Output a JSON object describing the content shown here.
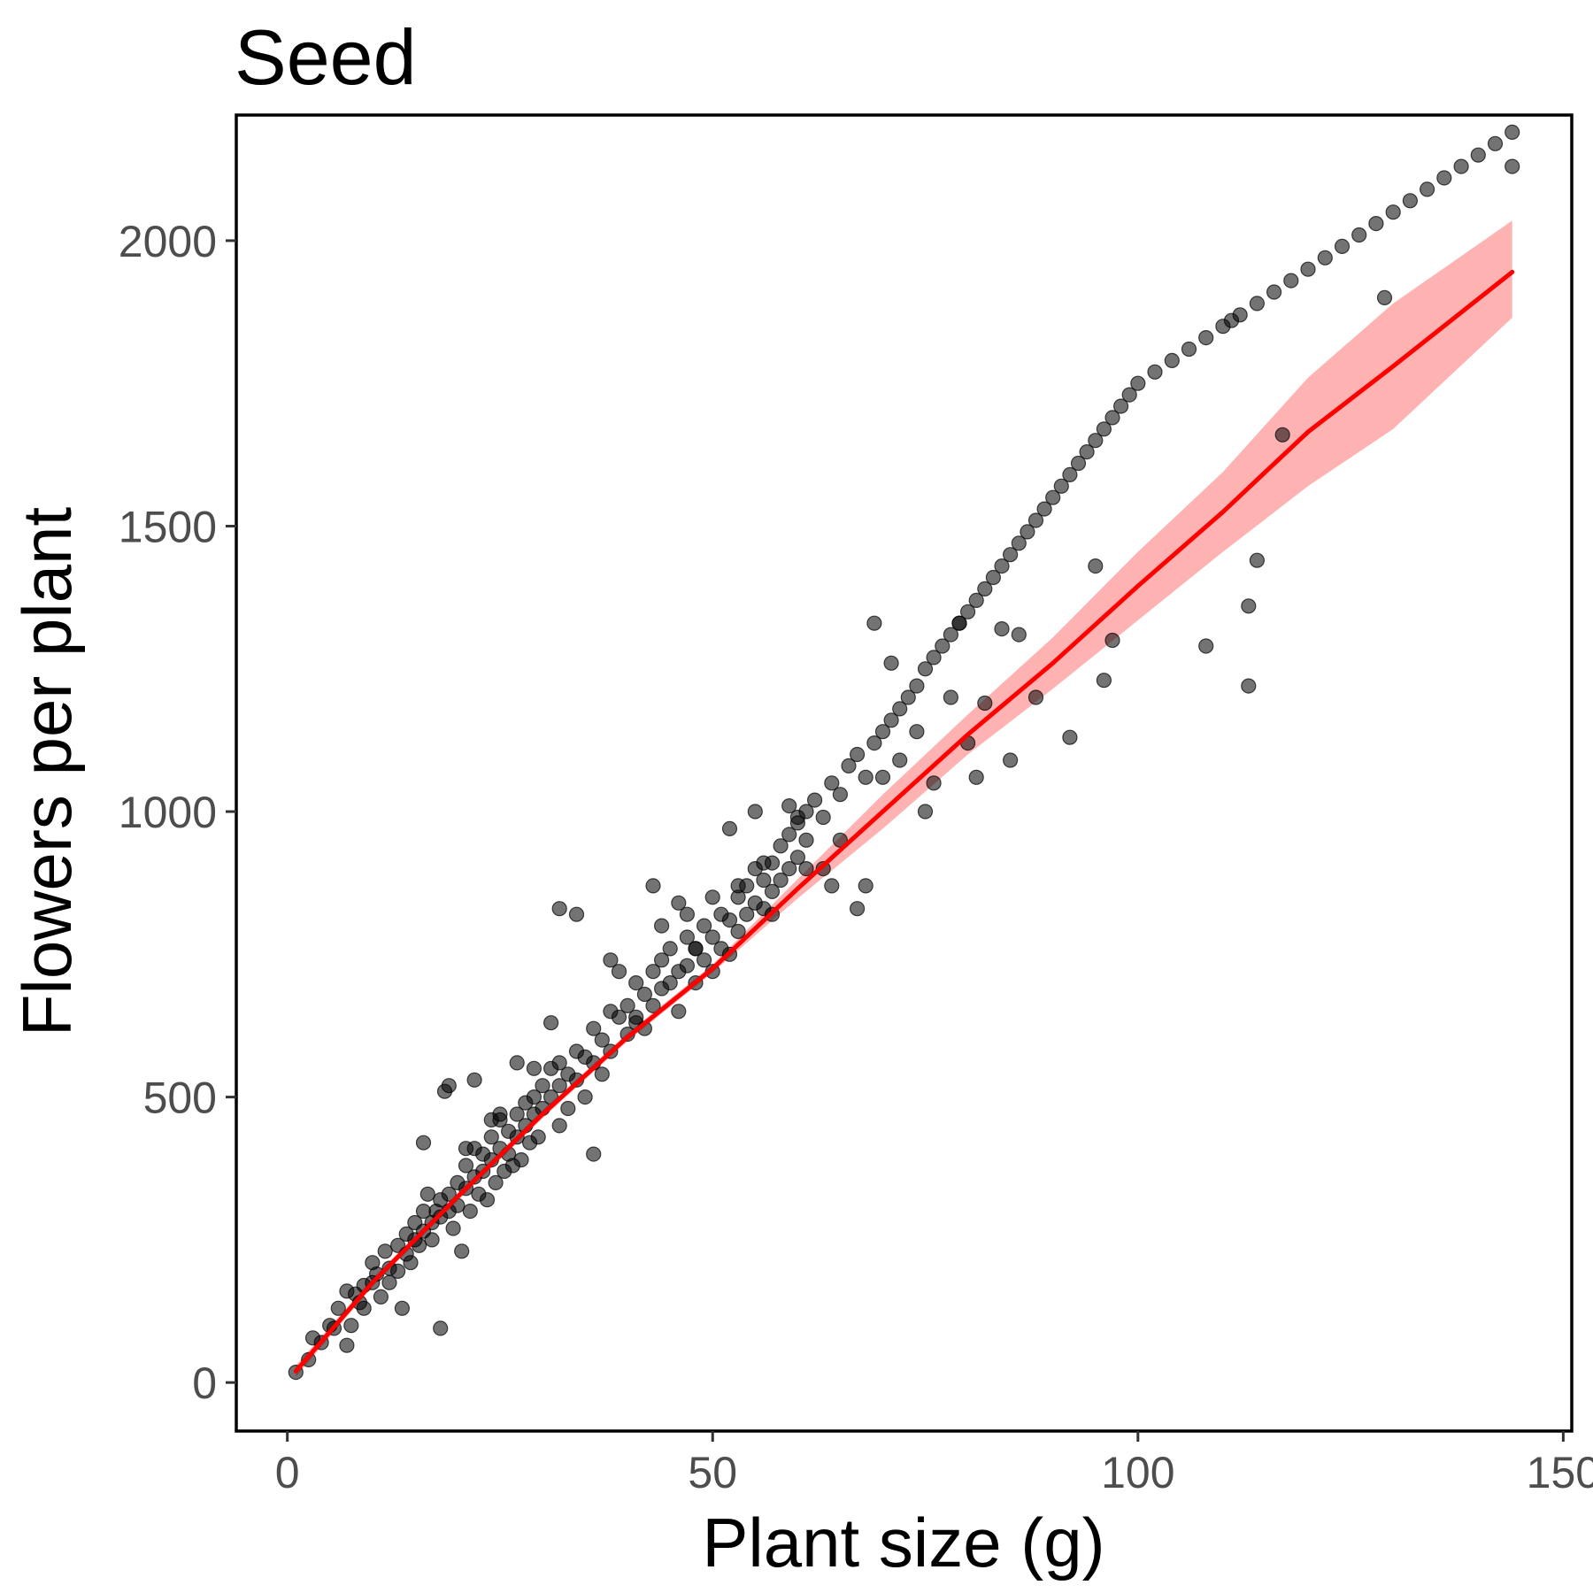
{
  "chart_data": {
    "type": "scatter",
    "title": "Seed",
    "xlabel": "Plant size (g)",
    "ylabel": "Flowers per plant",
    "xlim": [
      -6,
      151
    ],
    "ylim": [
      -85,
      2220
    ],
    "x_ticks": [
      0,
      50,
      100,
      150
    ],
    "y_ticks": [
      0,
      500,
      1000,
      1500,
      2000
    ],
    "x_tick_labels": [
      "0",
      "50",
      "100",
      "150"
    ],
    "y_tick_labels": [
      "0",
      "500",
      "1000",
      "1500",
      "2000"
    ],
    "grid": false,
    "legend": "none",
    "point_color": "#000000",
    "fit_color": "#ff0000",
    "band_color": "#ff0000",
    "fit": {
      "x": [
        1,
        10,
        20,
        30,
        40,
        50,
        60,
        70,
        80,
        90,
        100,
        110,
        120,
        130,
        144
      ],
      "y": [
        20,
        175,
        325,
        470,
        605,
        725,
        865,
        1000,
        1135,
        1260,
        1395,
        1525,
        1665,
        1780,
        1945
      ],
      "lower": [
        10,
        168,
        318,
        463,
        598,
        718,
        848,
        970,
        1100,
        1215,
        1335,
        1455,
        1570,
        1670,
        1865
      ],
      "upper": [
        30,
        182,
        332,
        477,
        612,
        732,
        882,
        1030,
        1170,
        1305,
        1455,
        1595,
        1760,
        1890,
        2035
      ]
    },
    "points": [
      [
        1,
        18
      ],
      [
        2.5,
        40
      ],
      [
        3,
        78
      ],
      [
        4,
        70
      ],
      [
        5,
        100
      ],
      [
        5.5,
        95
      ],
      [
        6,
        130
      ],
      [
        7,
        65
      ],
      [
        7,
        160
      ],
      [
        7.5,
        100
      ],
      [
        8,
        155
      ],
      [
        8.5,
        140
      ],
      [
        9,
        170
      ],
      [
        9,
        130
      ],
      [
        10,
        175
      ],
      [
        10.5,
        190
      ],
      [
        10,
        210
      ],
      [
        11,
        150
      ],
      [
        11.5,
        230
      ],
      [
        12,
        200
      ],
      [
        12,
        175
      ],
      [
        13,
        240
      ],
      [
        13,
        195
      ],
      [
        13.5,
        130
      ],
      [
        14,
        260
      ],
      [
        14,
        225
      ],
      [
        14.5,
        210
      ],
      [
        15,
        280
      ],
      [
        15,
        250
      ],
      [
        15.5,
        240
      ],
      [
        16,
        300
      ],
      [
        16,
        265
      ],
      [
        16.5,
        330
      ],
      [
        16,
        420
      ],
      [
        17,
        280
      ],
      [
        17,
        250
      ],
      [
        17.5,
        300
      ],
      [
        18,
        320
      ],
      [
        18,
        290
      ],
      [
        18.5,
        510
      ],
      [
        19,
        330
      ],
      [
        19,
        300
      ],
      [
        19.5,
        270
      ],
      [
        20,
        350
      ],
      [
        20,
        310
      ],
      [
        20.5,
        230
      ],
      [
        21,
        380
      ],
      [
        21,
        340
      ],
      [
        21.5,
        300
      ],
      [
        22,
        410
      ],
      [
        22,
        360
      ],
      [
        22.5,
        330
      ],
      [
        23,
        400
      ],
      [
        23,
        370
      ],
      [
        23.5,
        320
      ],
      [
        24,
        430
      ],
      [
        24,
        390
      ],
      [
        24.5,
        350
      ],
      [
        25,
        460
      ],
      [
        25,
        410
      ],
      [
        25.5,
        370
      ],
      [
        26,
        440
      ],
      [
        26,
        400
      ],
      [
        26.5,
        380
      ],
      [
        27,
        470
      ],
      [
        27,
        430
      ],
      [
        27.5,
        390
      ],
      [
        28,
        490
      ],
      [
        28,
        450
      ],
      [
        28.5,
        420
      ],
      [
        29,
        500
      ],
      [
        29,
        470
      ],
      [
        29.5,
        430
      ],
      [
        30,
        520
      ],
      [
        30,
        480
      ],
      [
        31,
        550
      ],
      [
        31,
        500
      ],
      [
        32,
        560
      ],
      [
        32,
        520
      ],
      [
        32,
        450
      ],
      [
        33,
        540
      ],
      [
        33,
        480
      ],
      [
        34,
        580
      ],
      [
        34,
        530
      ],
      [
        35,
        570
      ],
      [
        35,
        500
      ],
      [
        36,
        620
      ],
      [
        36,
        560
      ],
      [
        37,
        600
      ],
      [
        37,
        540
      ],
      [
        38,
        650
      ],
      [
        38,
        580
      ],
      [
        39,
        640
      ],
      [
        40,
        660
      ],
      [
        40,
        610
      ],
      [
        41,
        700
      ],
      [
        41,
        630
      ],
      [
        42,
        680
      ],
      [
        42,
        620
      ],
      [
        43,
        720
      ],
      [
        43,
        660
      ],
      [
        44,
        740
      ],
      [
        44,
        690
      ],
      [
        45,
        760
      ],
      [
        45,
        700
      ],
      [
        46,
        720
      ],
      [
        46,
        650
      ],
      [
        47,
        780
      ],
      [
        47,
        730
      ],
      [
        48,
        760
      ],
      [
        48,
        700
      ],
      [
        49,
        800
      ],
      [
        49,
        740
      ],
      [
        50,
        780
      ],
      [
        50,
        720
      ],
      [
        51,
        820
      ],
      [
        51,
        760
      ],
      [
        52,
        810
      ],
      [
        52,
        750
      ],
      [
        53,
        850
      ],
      [
        53,
        790
      ],
      [
        54,
        870
      ],
      [
        54,
        820
      ],
      [
        55,
        900
      ],
      [
        55,
        840
      ],
      [
        56,
        880
      ],
      [
        56,
        830
      ],
      [
        57,
        910
      ],
      [
        57,
        860
      ],
      [
        58,
        940
      ],
      [
        58,
        880
      ],
      [
        59,
        960
      ],
      [
        59,
        900
      ],
      [
        60,
        980
      ],
      [
        60,
        920
      ],
      [
        61,
        1000
      ],
      [
        61,
        950
      ],
      [
        62,
        1020
      ],
      [
        63,
        990
      ],
      [
        64,
        1050
      ],
      [
        65,
        1030
      ],
      [
        66,
        1080
      ],
      [
        67,
        1100
      ],
      [
        68,
        1060
      ],
      [
        69,
        1120
      ],
      [
        70,
        1140
      ],
      [
        71,
        1160
      ],
      [
        72,
        1180
      ],
      [
        73,
        1200
      ],
      [
        74,
        1220
      ],
      [
        75,
        1250
      ],
      [
        76,
        1270
      ],
      [
        77,
        1290
      ],
      [
        78,
        1310
      ],
      [
        79,
        1330
      ],
      [
        80,
        1350
      ],
      [
        81,
        1370
      ],
      [
        82,
        1390
      ],
      [
        83,
        1410
      ],
      [
        84,
        1430
      ],
      [
        85,
        1450
      ],
      [
        86,
        1470
      ],
      [
        87,
        1490
      ],
      [
        88,
        1510
      ],
      [
        89,
        1530
      ],
      [
        90,
        1550
      ],
      [
        91,
        1570
      ],
      [
        92,
        1590
      ],
      [
        93,
        1610
      ],
      [
        94,
        1630
      ],
      [
        95,
        1650
      ],
      [
        96,
        1670
      ],
      [
        97,
        1690
      ],
      [
        98,
        1710
      ],
      [
        99,
        1730
      ],
      [
        100,
        1750
      ],
      [
        102,
        1770
      ],
      [
        104,
        1790
      ],
      [
        106,
        1810
      ],
      [
        108,
        1830
      ],
      [
        110,
        1850
      ],
      [
        112,
        1870
      ],
      [
        114,
        1890
      ],
      [
        116,
        1910
      ],
      [
        118,
        1930
      ],
      [
        120,
        1950
      ],
      [
        122,
        1970
      ],
      [
        124,
        1990
      ],
      [
        126,
        2010
      ],
      [
        128,
        2030
      ],
      [
        130,
        2050
      ],
      [
        132,
        2070
      ],
      [
        134,
        2090
      ],
      [
        136,
        2110
      ],
      [
        138,
        2130
      ],
      [
        140,
        2150
      ],
      [
        142,
        2170
      ],
      [
        144,
        2190
      ],
      [
        18,
        95
      ],
      [
        19,
        520
      ],
      [
        21,
        410
      ],
      [
        22,
        530
      ],
      [
        24,
        460
      ],
      [
        25,
        470
      ],
      [
        27,
        560
      ],
      [
        29,
        550
      ],
      [
        31,
        630
      ],
      [
        32,
        830
      ],
      [
        34,
        820
      ],
      [
        36,
        400
      ],
      [
        38,
        740
      ],
      [
        39,
        720
      ],
      [
        41,
        640
      ],
      [
        43,
        870
      ],
      [
        44,
        800
      ],
      [
        46,
        840
      ],
      [
        47,
        820
      ],
      [
        48,
        760
      ],
      [
        50,
        850
      ],
      [
        52,
        970
      ],
      [
        53,
        870
      ],
      [
        55,
        1000
      ],
      [
        56,
        910
      ],
      [
        57,
        820
      ],
      [
        59,
        1010
      ],
      [
        60,
        990
      ],
      [
        61,
        900
      ],
      [
        63,
        900
      ],
      [
        64,
        870
      ],
      [
        65,
        950
      ],
      [
        67,
        830
      ],
      [
        68,
        870
      ],
      [
        69,
        1330
      ],
      [
        70,
        1060
      ],
      [
        71,
        1260
      ],
      [
        72,
        1090
      ],
      [
        74,
        1140
      ],
      [
        75,
        1000
      ],
      [
        76,
        1050
      ],
      [
        78,
        1200
      ],
      [
        79,
        1330
      ],
      [
        80,
        1120
      ],
      [
        81,
        1060
      ],
      [
        82,
        1190
      ],
      [
        84,
        1320
      ],
      [
        85,
        1090
      ],
      [
        86,
        1310
      ],
      [
        88,
        1200
      ],
      [
        92,
        1130
      ],
      [
        95,
        1430
      ],
      [
        96,
        1230
      ],
      [
        97,
        1300
      ],
      [
        108,
        1290
      ],
      [
        111,
        1860
      ],
      [
        113,
        1220
      ],
      [
        113,
        1360
      ],
      [
        114,
        1440
      ],
      [
        117,
        1660
      ],
      [
        129,
        1900
      ],
      [
        144,
        2130
      ]
    ]
  }
}
